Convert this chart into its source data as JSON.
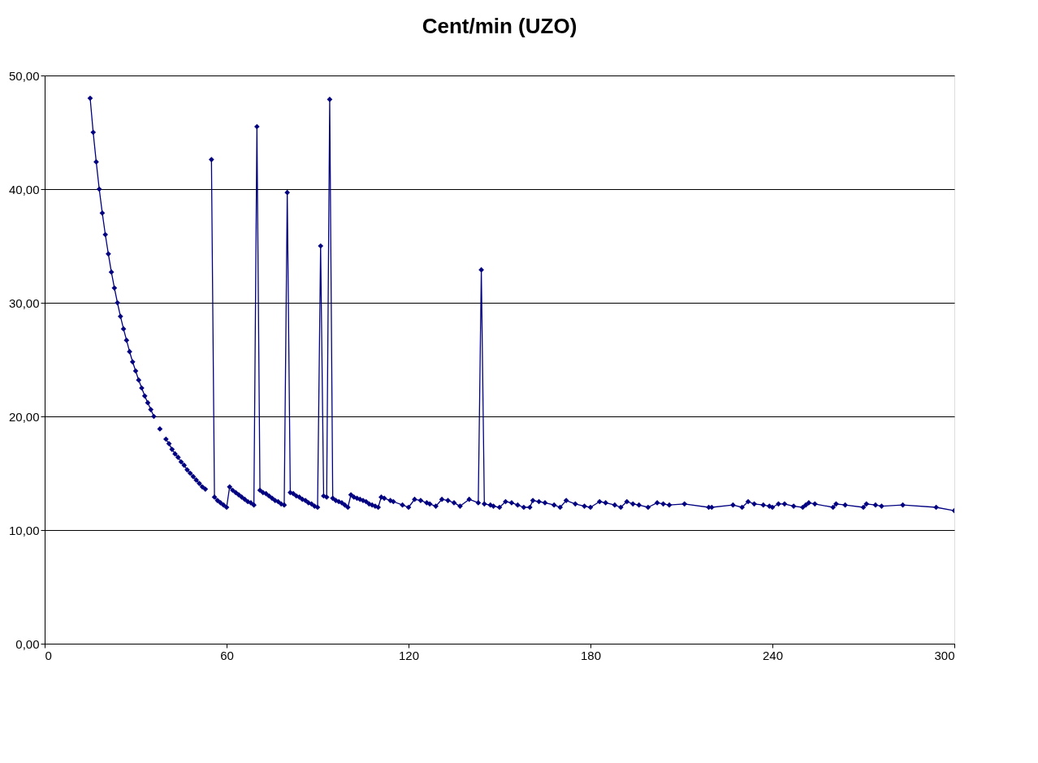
{
  "chart_data": {
    "type": "line",
    "title": "Cent/min (UZO)",
    "x": [
      15,
      16,
      17,
      18,
      19,
      20,
      21,
      22,
      23,
      24,
      25,
      26,
      27,
      28,
      29,
      30,
      31,
      32,
      33,
      34,
      35,
      36,
      37,
      38,
      39,
      40,
      41,
      42,
      43,
      44,
      45,
      46,
      47,
      48,
      49,
      50,
      51,
      52,
      53,
      54,
      55,
      56,
      57,
      58,
      59,
      60,
      61,
      62,
      63,
      64,
      65,
      66,
      67,
      68,
      69,
      70,
      71,
      72,
      73,
      74,
      75,
      76,
      77,
      78,
      79,
      80,
      81,
      82,
      83,
      84,
      85,
      86,
      87,
      88,
      89,
      90,
      91,
      92,
      93,
      94,
      95,
      96,
      97,
      98,
      99,
      100,
      101,
      102,
      103,
      104,
      105,
      106,
      107,
      108,
      109,
      110,
      111,
      112,
      114,
      115,
      118,
      120,
      122,
      124,
      126,
      127,
      129,
      131,
      133,
      135,
      137,
      140,
      143,
      144,
      145,
      147,
      148,
      150,
      152,
      154,
      156,
      158,
      160,
      161,
      163,
      165,
      168,
      170,
      172,
      175,
      178,
      180,
      183,
      185,
      188,
      190,
      192,
      194,
      196,
      199,
      202,
      204,
      206,
      211,
      219,
      220,
      227,
      230,
      232,
      234,
      237,
      239,
      240,
      242,
      244,
      247,
      250,
      251,
      252,
      254,
      260,
      261,
      264,
      270,
      271,
      274,
      276,
      283,
      294,
      300
    ],
    "series": [
      {
        "color": "#000080",
        "values": [
          48.0,
          45.0,
          42.4,
          40.0,
          37.9,
          36.0,
          34.3,
          32.7,
          31.3,
          30.0,
          28.8,
          27.7,
          26.7,
          25.7,
          24.8,
          24.0,
          23.2,
          22.5,
          21.8,
          21.2,
          20.6,
          20.0,
          null,
          18.9,
          null,
          18.0,
          17.6,
          17.1,
          16.7,
          16.4,
          16.0,
          15.7,
          15.3,
          15.0,
          14.7,
          14.4,
          14.1,
          13.8,
          13.6,
          null,
          42.6,
          12.9,
          12.6,
          12.4,
          12.2,
          12.0,
          13.8,
          13.5,
          13.3,
          13.1,
          12.9,
          12.7,
          12.5,
          12.4,
          12.2,
          45.5,
          13.5,
          13.3,
          13.2,
          13.0,
          12.8,
          12.6,
          12.5,
          12.3,
          12.2,
          39.7,
          13.3,
          13.2,
          13.0,
          12.9,
          12.7,
          12.6,
          12.4,
          12.3,
          12.1,
          12.0,
          35.0,
          13.0,
          12.9,
          47.9,
          12.8,
          12.6,
          12.5,
          12.4,
          12.2,
          12.0,
          13.1,
          12.9,
          12.8,
          12.7,
          12.6,
          12.5,
          12.3,
          12.2,
          12.1,
          12.0,
          12.9,
          12.8,
          12.6,
          12.5,
          12.2,
          12.0,
          12.7,
          12.6,
          12.4,
          12.3,
          12.1,
          12.7,
          12.6,
          12.4,
          12.1,
          12.7,
          12.4,
          32.9,
          12.3,
          12.2,
          12.1,
          12.0,
          12.5,
          12.4,
          12.2,
          12.0,
          12.0,
          12.6,
          12.5,
          12.4,
          12.2,
          12.0,
          12.6,
          12.3,
          12.1,
          12.0,
          12.5,
          12.4,
          12.2,
          12.0,
          12.5,
          12.3,
          12.2,
          12.0,
          12.4,
          12.3,
          12.2,
          12.3,
          12.0,
          12.0,
          12.2,
          12.0,
          12.5,
          12.3,
          12.2,
          12.1,
          12.0,
          12.3,
          12.3,
          12.1,
          12.0,
          12.2,
          12.4,
          12.3,
          12.0,
          12.3,
          12.2,
          12.0,
          12.3,
          12.2,
          12.1,
          12.2,
          12.0,
          11.7
        ]
      }
    ],
    "xlim": [
      0,
      300
    ],
    "xticks": [
      0,
      60,
      120,
      180,
      240,
      300
    ],
    "ylim": [
      0,
      50
    ],
    "yticks": [
      {
        "value": 0,
        "label": "0,00"
      },
      {
        "value": 10,
        "label": "10,00"
      },
      {
        "value": 20,
        "label": "20,00"
      },
      {
        "value": 30,
        "label": "30,00"
      },
      {
        "value": 40,
        "label": "40,00"
      },
      {
        "value": 50,
        "label": "50,00"
      }
    ],
    "grid": "y",
    "marker": "diamond",
    "line_style": "solid"
  }
}
